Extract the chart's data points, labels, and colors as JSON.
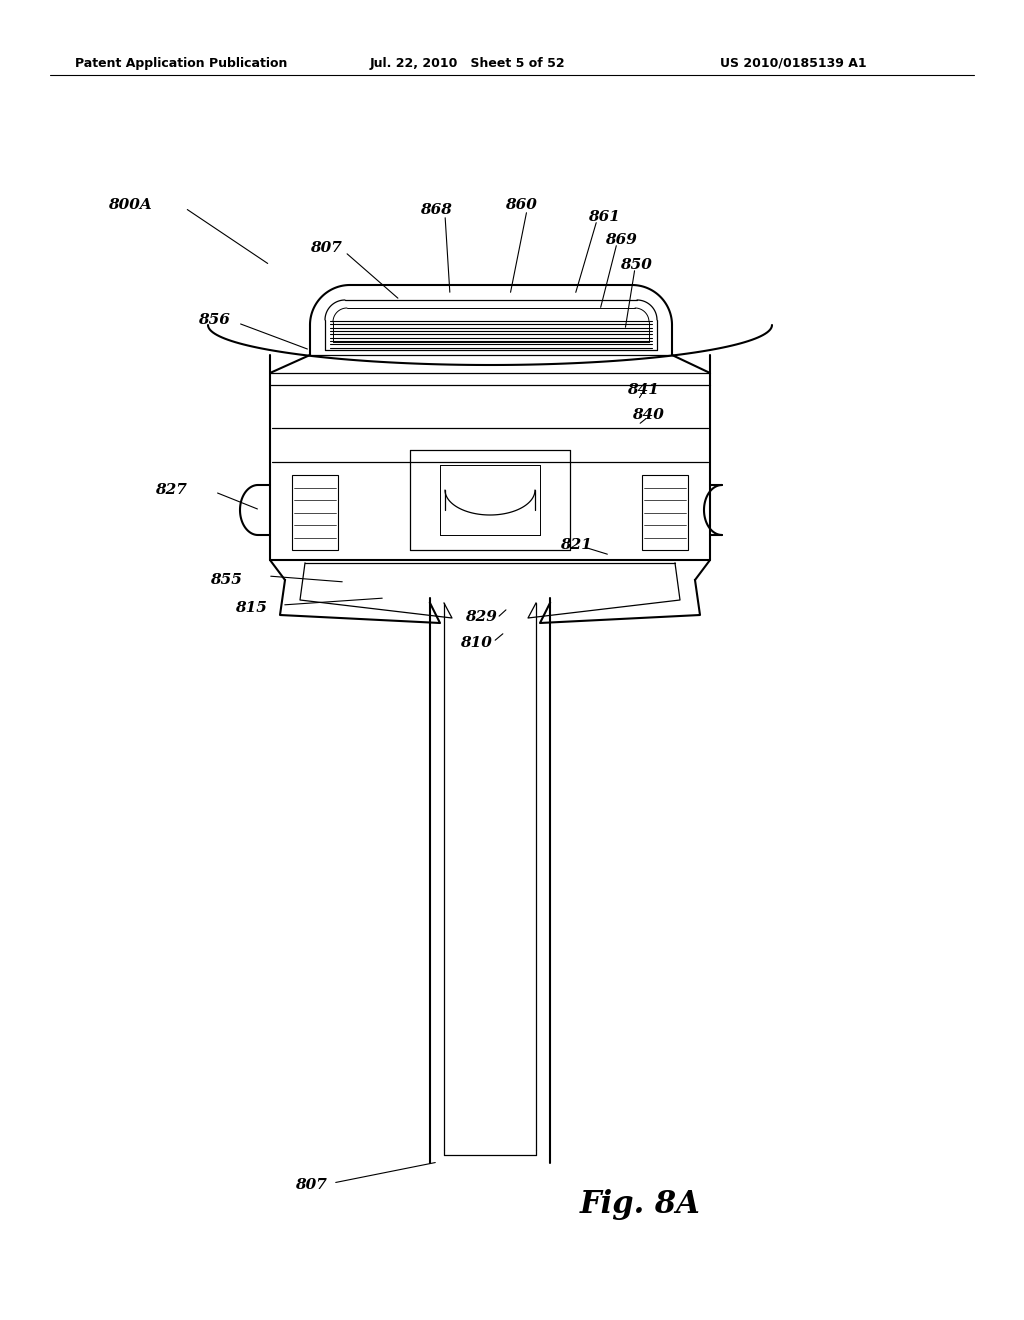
{
  "title_left": "Patent Application Publication",
  "title_mid": "Jul. 22, 2010   Sheet 5 of 52",
  "title_right": "US 2010/0185139 A1",
  "fig_label": "Fig. 8A",
  "background_color": "#ffffff",
  "line_color": "#000000",
  "header_fontsize": 9,
  "label_fontsize": 11,
  "fig_label_fontsize": 22
}
